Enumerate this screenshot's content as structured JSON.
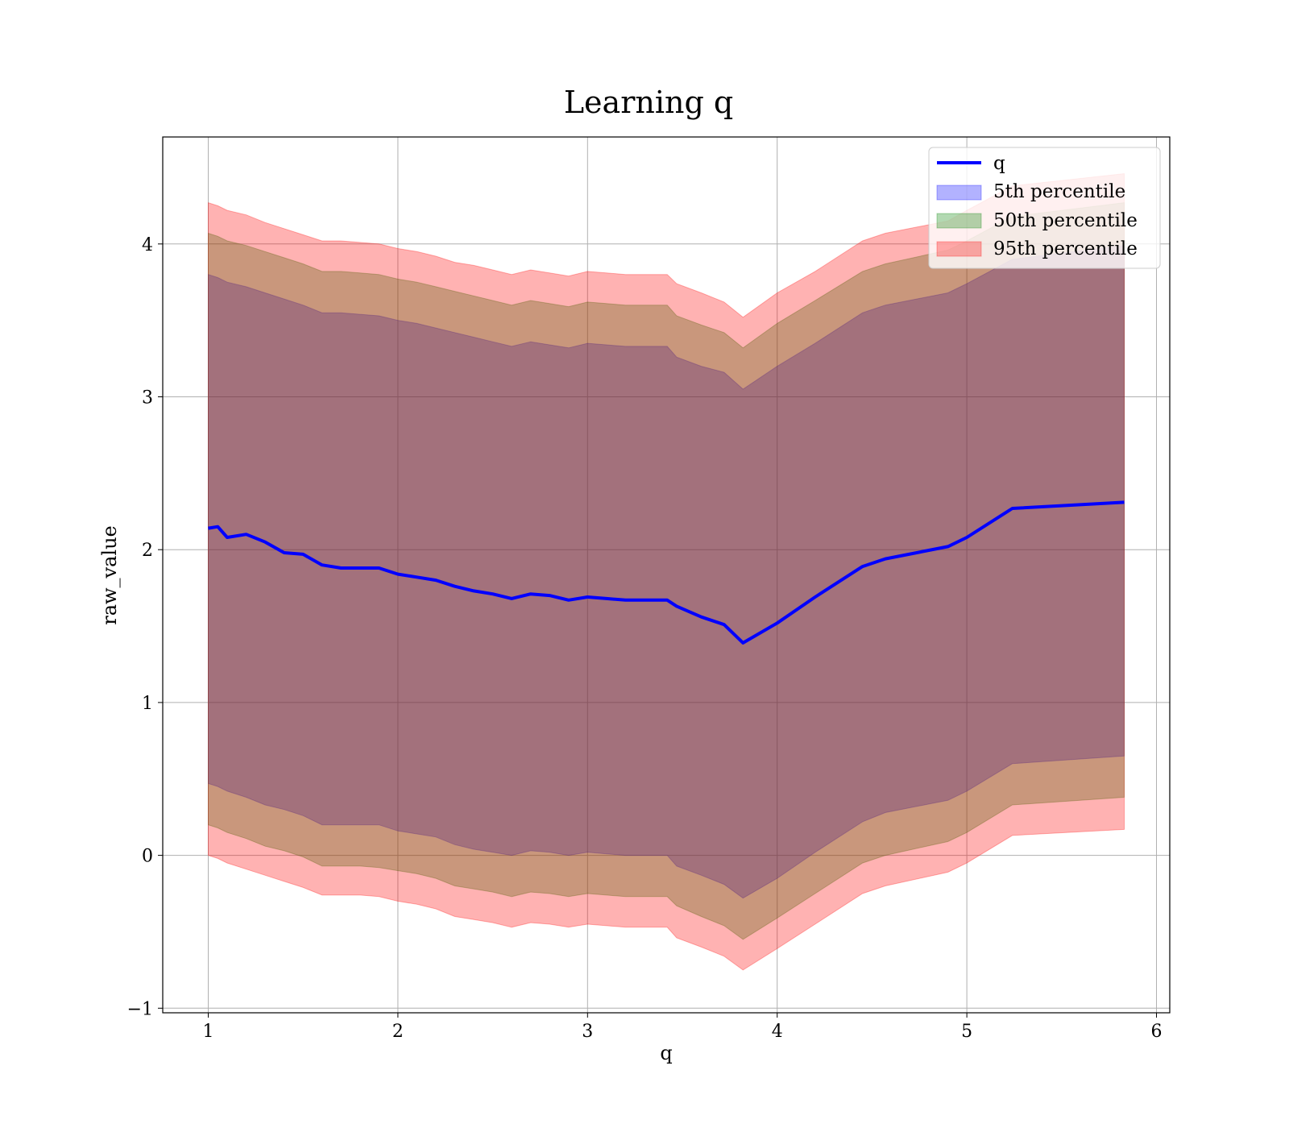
{
  "chart_data": {
    "type": "area",
    "title": "Learning q",
    "xlabel": "q",
    "ylabel": "raw_value",
    "xlim": [
      0.76,
      6.07
    ],
    "ylim": [
      -1.03,
      4.7
    ],
    "xticks": [
      1,
      2,
      3,
      4,
      5,
      6
    ],
    "yticks": [
      -1,
      0,
      1,
      2,
      3,
      4
    ],
    "xtick_labels": [
      "1",
      "2",
      "3",
      "4",
      "5",
      "6"
    ],
    "ytick_labels": [
      "−1",
      "0",
      "1",
      "2",
      "3",
      "4"
    ],
    "grid": true,
    "legend_position": "top-right",
    "colors": {
      "line": "#0000ff",
      "band_5": "#0000ff",
      "band_50": "#008000",
      "band_95": "#ff0000"
    },
    "x": [
      1.0,
      1.05,
      1.1,
      1.2,
      1.3,
      1.4,
      1.5,
      1.6,
      1.7,
      1.8,
      1.9,
      2.0,
      2.1,
      2.2,
      2.3,
      2.4,
      2.5,
      2.6,
      2.7,
      2.8,
      2.9,
      3.0,
      3.1,
      3.2,
      3.3,
      3.42,
      3.47,
      3.6,
      3.72,
      3.82,
      4.0,
      4.2,
      4.45,
      4.57,
      4.9,
      5.0,
      5.24,
      5.83
    ],
    "series": [
      {
        "name": "q",
        "kind": "line",
        "values": [
          2.14,
          2.15,
          2.08,
          2.1,
          2.05,
          1.98,
          1.97,
          1.9,
          1.88,
          1.88,
          1.88,
          1.84,
          1.82,
          1.8,
          1.76,
          1.73,
          1.71,
          1.68,
          1.71,
          1.7,
          1.67,
          1.69,
          1.68,
          1.67,
          1.67,
          1.67,
          1.63,
          1.56,
          1.51,
          1.39,
          1.52,
          1.69,
          1.89,
          1.94,
          2.02,
          2.08,
          2.27,
          2.31
        ]
      },
      {
        "name": "5th percentile",
        "kind": "band",
        "upper": [
          3.8,
          3.78,
          3.75,
          3.72,
          3.68,
          3.64,
          3.6,
          3.55,
          3.55,
          3.54,
          3.53,
          3.5,
          3.48,
          3.45,
          3.42,
          3.39,
          3.36,
          3.33,
          3.36,
          3.34,
          3.32,
          3.35,
          3.34,
          3.33,
          3.33,
          3.33,
          3.26,
          3.2,
          3.16,
          3.05,
          3.2,
          3.35,
          3.55,
          3.6,
          3.68,
          3.74,
          3.9,
          3.99
        ],
        "lower": [
          0.47,
          0.45,
          0.42,
          0.38,
          0.33,
          0.3,
          0.26,
          0.2,
          0.2,
          0.2,
          0.2,
          0.16,
          0.14,
          0.12,
          0.07,
          0.04,
          0.02,
          0.0,
          0.03,
          0.02,
          0.0,
          0.02,
          0.01,
          0.0,
          0.0,
          0.0,
          -0.07,
          -0.13,
          -0.19,
          -0.28,
          -0.15,
          0.02,
          0.22,
          0.28,
          0.36,
          0.42,
          0.6,
          0.65
        ]
      },
      {
        "name": "50th percentile",
        "kind": "band",
        "upper": [
          4.07,
          4.05,
          4.02,
          3.99,
          3.95,
          3.91,
          3.87,
          3.82,
          3.82,
          3.81,
          3.8,
          3.77,
          3.75,
          3.72,
          3.69,
          3.66,
          3.63,
          3.6,
          3.63,
          3.61,
          3.59,
          3.62,
          3.61,
          3.6,
          3.6,
          3.6,
          3.53,
          3.47,
          3.42,
          3.32,
          3.48,
          3.63,
          3.82,
          3.87,
          3.96,
          4.02,
          4.18,
          4.27
        ],
        "lower": [
          0.2,
          0.18,
          0.15,
          0.11,
          0.06,
          0.03,
          -0.01,
          -0.07,
          -0.07,
          -0.07,
          -0.08,
          -0.1,
          -0.12,
          -0.15,
          -0.2,
          -0.22,
          -0.24,
          -0.27,
          -0.24,
          -0.25,
          -0.27,
          -0.25,
          -0.26,
          -0.27,
          -0.27,
          -0.27,
          -0.33,
          -0.4,
          -0.46,
          -0.55,
          -0.41,
          -0.25,
          -0.05,
          0.0,
          0.09,
          0.15,
          0.33,
          0.38
        ]
      },
      {
        "name": "95th percentile",
        "kind": "band",
        "upper": [
          4.27,
          4.25,
          4.22,
          4.19,
          4.14,
          4.1,
          4.06,
          4.02,
          4.02,
          4.01,
          4.0,
          3.97,
          3.95,
          3.92,
          3.88,
          3.86,
          3.83,
          3.8,
          3.83,
          3.81,
          3.79,
          3.82,
          3.81,
          3.8,
          3.8,
          3.8,
          3.74,
          3.68,
          3.62,
          3.52,
          3.68,
          3.82,
          4.02,
          4.07,
          4.15,
          4.22,
          4.38,
          4.46
        ],
        "lower": [
          0.0,
          -0.02,
          -0.05,
          -0.09,
          -0.13,
          -0.17,
          -0.21,
          -0.26,
          -0.26,
          -0.26,
          -0.27,
          -0.3,
          -0.32,
          -0.35,
          -0.4,
          -0.42,
          -0.44,
          -0.47,
          -0.44,
          -0.45,
          -0.47,
          -0.45,
          -0.46,
          -0.47,
          -0.47,
          -0.47,
          -0.54,
          -0.6,
          -0.66,
          -0.75,
          -0.61,
          -0.45,
          -0.25,
          -0.2,
          -0.11,
          -0.05,
          0.13,
          0.17
        ]
      }
    ]
  }
}
